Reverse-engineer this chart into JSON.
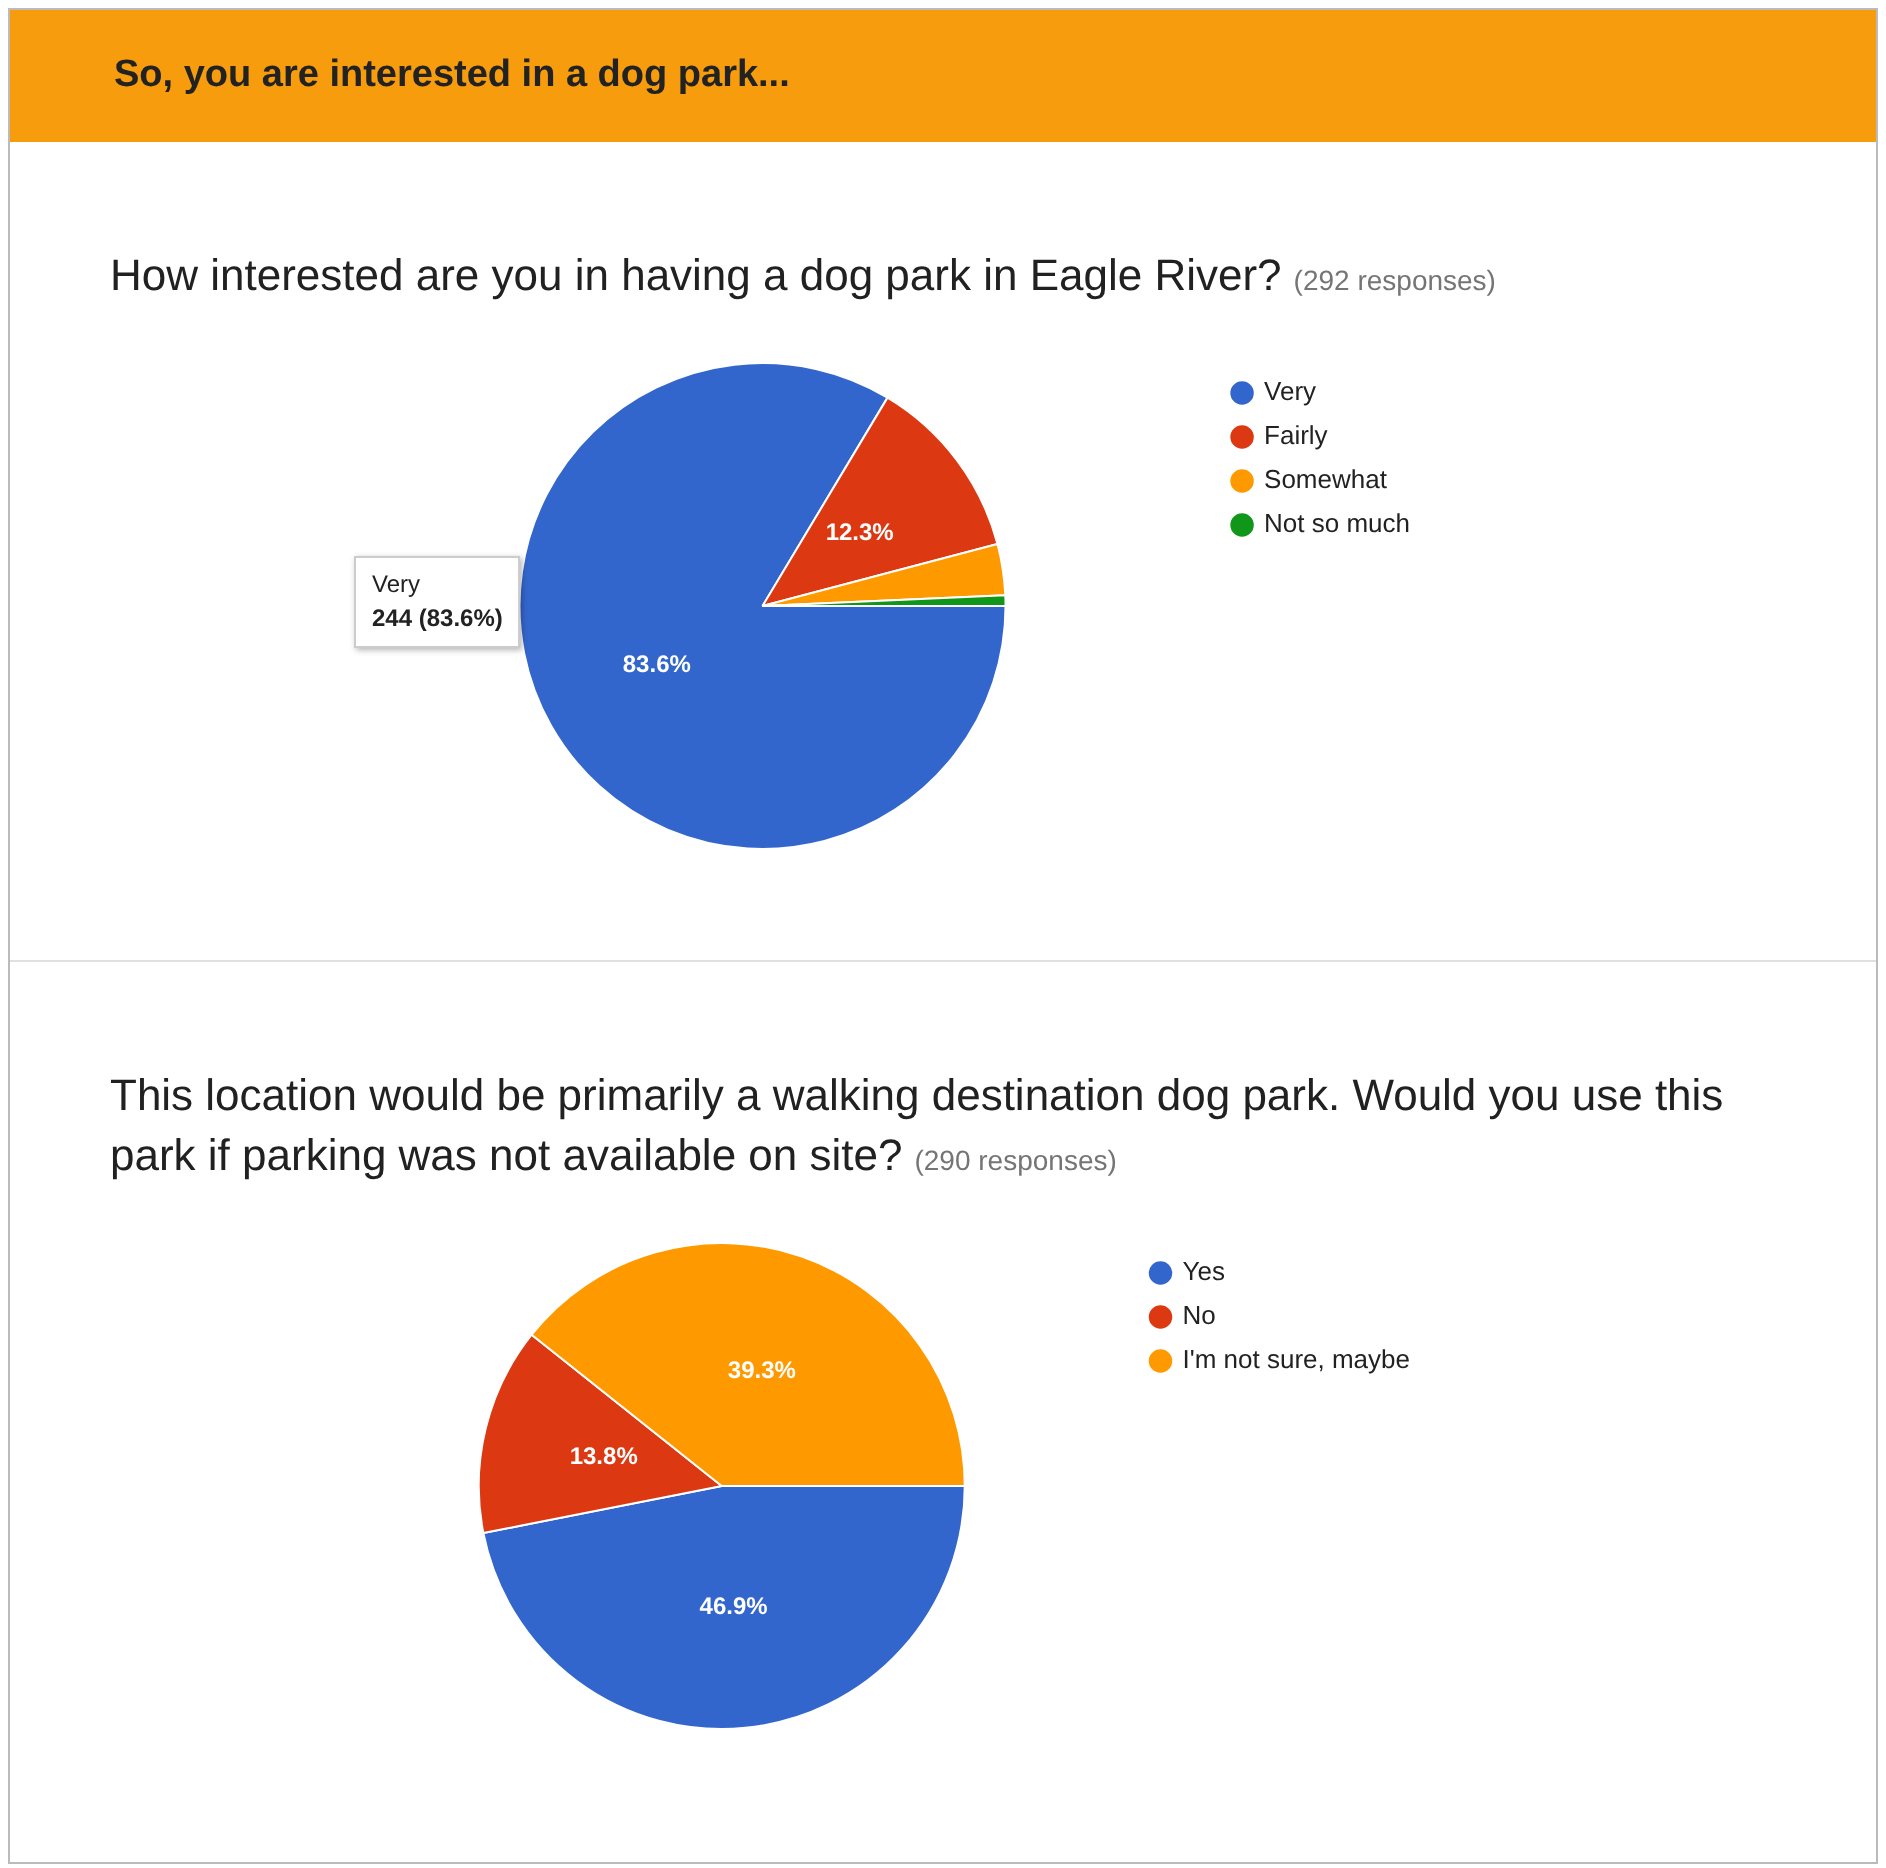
{
  "chart_data": [
    {
      "type": "other",
      "title": "So, you are interested in a dog park...",
      "color": "#f79c0d"
    },
    {
      "type": "pie",
      "title": "How interested are you in having a dog park in Eagle River?",
      "subtitle": "(292 responses)",
      "categories": [
        "Very",
        "Fairly",
        "Somewhat",
        "Not so much"
      ],
      "values": [
        83.6,
        12.3,
        3.4,
        0.7
      ],
      "colors": [
        "#3366cc",
        "#dc3912",
        "#ff9900",
        "#109618"
      ],
      "value_labels": [
        "83.6%",
        "12.3%",
        null,
        null
      ],
      "legend": "right",
      "annotations": [
        "Very",
        "244 (83.6%)"
      ]
    },
    {
      "type": "pie",
      "title": "This location would be primarily a walking destination dog park. Would you use this park if parking was not available on site?",
      "subtitle": "(290 responses)",
      "categories": [
        "Yes",
        "No",
        "I'm not sure, maybe"
      ],
      "values": [
        46.9,
        13.8,
        39.3
      ],
      "colors": [
        "#3366cc",
        "#dc3912",
        "#ff9900"
      ],
      "value_labels": [
        "46.9%",
        "13.8%",
        "39.3%"
      ],
      "legend": "right"
    }
  ]
}
